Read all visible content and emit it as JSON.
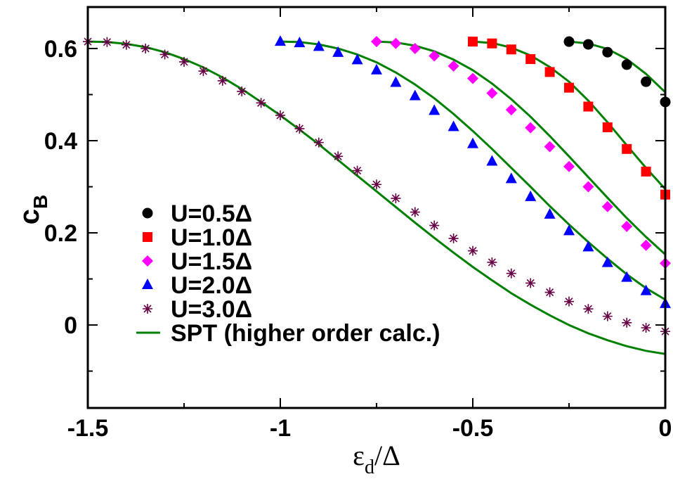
{
  "chart_data": {
    "type": "scatter",
    "xlabel": "ε_d/Δ",
    "xlabel_main": "ε",
    "xlabel_sub": "d",
    "xlabel_tail": "/Δ",
    "ylabel": "c_B",
    "ylabel_main": "c",
    "ylabel_sub": "B",
    "xlim": [
      -1.5,
      0
    ],
    "ylim": [
      -0.18,
      0.69
    ],
    "grid": false,
    "legend_position": "lower-left",
    "x_ticks": [
      {
        "value": -1.5,
        "label": "-1.5"
      },
      {
        "value": -1,
        "label": "-1"
      },
      {
        "value": -0.5,
        "label": "-0.5"
      },
      {
        "value": 0,
        "label": "0"
      }
    ],
    "y_ticks": [
      {
        "value": 0,
        "label": "0"
      },
      {
        "value": 0.2,
        "label": "0.2"
      },
      {
        "value": 0.4,
        "label": "0.4"
      },
      {
        "value": 0.6,
        "label": "0.6"
      }
    ],
    "series": [
      {
        "name": "U=0.5Δ",
        "marker": "circle",
        "color": "#000000",
        "points": [
          [
            -0.25,
            0.615
          ],
          [
            -0.2,
            0.609
          ],
          [
            -0.15,
            0.592
          ],
          [
            -0.1,
            0.565
          ],
          [
            -0.05,
            0.528
          ],
          [
            0,
            0.484
          ]
        ]
      },
      {
        "name": "U=1.0Δ",
        "marker": "square",
        "color": "#ff0000",
        "points": [
          [
            -0.5,
            0.615
          ],
          [
            -0.45,
            0.611
          ],
          [
            -0.4,
            0.598
          ],
          [
            -0.35,
            0.577
          ],
          [
            -0.3,
            0.549
          ],
          [
            -0.25,
            0.515
          ],
          [
            -0.2,
            0.474
          ],
          [
            -0.15,
            0.429
          ],
          [
            -0.1,
            0.382
          ],
          [
            -0.05,
            0.333
          ],
          [
            0,
            0.283
          ]
        ]
      },
      {
        "name": "U=1.5Δ",
        "marker": "diamond",
        "color": "#ff00ff",
        "points": [
          [
            -0.75,
            0.615
          ],
          [
            -0.7,
            0.611
          ],
          [
            -0.65,
            0.6
          ],
          [
            -0.6,
            0.584
          ],
          [
            -0.55,
            0.562
          ],
          [
            -0.5,
            0.535
          ],
          [
            -0.45,
            0.503
          ],
          [
            -0.4,
            0.467
          ],
          [
            -0.35,
            0.428
          ],
          [
            -0.3,
            0.387
          ],
          [
            -0.25,
            0.344
          ],
          [
            -0.2,
            0.3
          ],
          [
            -0.15,
            0.257
          ],
          [
            -0.1,
            0.214
          ],
          [
            -0.05,
            0.173
          ],
          [
            0,
            0.134
          ]
        ]
      },
      {
        "name": "U=2.0Δ",
        "marker": "triangle",
        "color": "#0000ff",
        "points": [
          [
            -1,
            0.615
          ],
          [
            -0.95,
            0.612
          ],
          [
            -0.9,
            0.604
          ],
          [
            -0.85,
            0.591
          ],
          [
            -0.8,
            0.575
          ],
          [
            -0.75,
            0.553
          ],
          [
            -0.7,
            0.526
          ],
          [
            -0.65,
            0.497
          ],
          [
            -0.6,
            0.465
          ],
          [
            -0.55,
            0.43
          ],
          [
            -0.5,
            0.393
          ],
          [
            -0.45,
            0.355
          ],
          [
            -0.4,
            0.317
          ],
          [
            -0.35,
            0.278
          ],
          [
            -0.3,
            0.24
          ],
          [
            -0.25,
            0.204
          ],
          [
            -0.2,
            0.169
          ],
          [
            -0.15,
            0.135
          ],
          [
            -0.1,
            0.103
          ],
          [
            -0.05,
            0.074
          ],
          [
            0,
            0.046
          ]
        ]
      },
      {
        "name": "U=3.0Δ",
        "marker": "star",
        "color": "#660044",
        "points": [
          [
            -1.5,
            0.615
          ],
          [
            -1.45,
            0.614
          ],
          [
            -1.4,
            0.608
          ],
          [
            -1.35,
            0.6
          ],
          [
            -1.3,
            0.587
          ],
          [
            -1.25,
            0.571
          ],
          [
            -1.2,
            0.551
          ],
          [
            -1.15,
            0.53
          ],
          [
            -1.1,
            0.507
          ],
          [
            -1.05,
            0.482
          ],
          [
            -1,
            0.455
          ],
          [
            -0.95,
            0.426
          ],
          [
            -0.9,
            0.396
          ],
          [
            -0.85,
            0.366
          ],
          [
            -0.8,
            0.335
          ],
          [
            -0.75,
            0.305
          ],
          [
            -0.7,
            0.275
          ],
          [
            -0.65,
            0.245
          ],
          [
            -0.6,
            0.216
          ],
          [
            -0.55,
            0.188
          ],
          [
            -0.5,
            0.161
          ],
          [
            -0.45,
            0.136
          ],
          [
            -0.4,
            0.112
          ],
          [
            -0.35,
            0.091
          ],
          [
            -0.3,
            0.071
          ],
          [
            -0.25,
            0.051
          ],
          [
            -0.2,
            0.035
          ],
          [
            -0.15,
            0.019
          ],
          [
            -0.1,
            0.005
          ],
          [
            -0.05,
            -0.006
          ],
          [
            0,
            -0.014
          ]
        ]
      }
    ],
    "lines": [
      {
        "name": "SPT (higher order calc.)",
        "color": "#008000",
        "curves": [
          [
            [
              -0.25,
              0.615
            ],
            [
              -0.2,
              0.611
            ],
            [
              -0.15,
              0.599
            ],
            [
              -0.1,
              0.577
            ],
            [
              -0.05,
              0.545
            ],
            [
              0,
              0.505
            ]
          ],
          [
            [
              -0.5,
              0.615
            ],
            [
              -0.45,
              0.612
            ],
            [
              -0.4,
              0.602
            ],
            [
              -0.35,
              0.585
            ],
            [
              -0.3,
              0.56
            ],
            [
              -0.25,
              0.528
            ],
            [
              -0.2,
              0.487
            ],
            [
              -0.15,
              0.44
            ],
            [
              -0.1,
              0.39
            ],
            [
              -0.05,
              0.341
            ],
            [
              0,
              0.295
            ]
          ],
          [
            [
              -0.75,
              0.615
            ],
            [
              -0.7,
              0.613
            ],
            [
              -0.65,
              0.606
            ],
            [
              -0.6,
              0.594
            ],
            [
              -0.55,
              0.576
            ],
            [
              -0.5,
              0.553
            ],
            [
              -0.45,
              0.524
            ],
            [
              -0.4,
              0.49
            ],
            [
              -0.35,
              0.452
            ],
            [
              -0.3,
              0.41
            ],
            [
              -0.25,
              0.366
            ],
            [
              -0.2,
              0.321
            ],
            [
              -0.15,
              0.276
            ],
            [
              -0.1,
              0.232
            ],
            [
              -0.05,
              0.191
            ],
            [
              0,
              0.153
            ]
          ],
          [
            [
              -1,
              0.615
            ],
            [
              -0.95,
              0.614
            ],
            [
              -0.9,
              0.609
            ],
            [
              -0.85,
              0.6
            ],
            [
              -0.8,
              0.587
            ],
            [
              -0.75,
              0.57
            ],
            [
              -0.7,
              0.548
            ],
            [
              -0.65,
              0.522
            ],
            [
              -0.6,
              0.492
            ],
            [
              -0.55,
              0.458
            ],
            [
              -0.5,
              0.421
            ],
            [
              -0.45,
              0.382
            ],
            [
              -0.4,
              0.341
            ],
            [
              -0.35,
              0.3
            ],
            [
              -0.3,
              0.258
            ],
            [
              -0.25,
              0.218
            ],
            [
              -0.2,
              0.18
            ],
            [
              -0.15,
              0.144
            ],
            [
              -0.1,
              0.11
            ],
            [
              -0.05,
              0.08
            ],
            [
              0,
              0.055
            ]
          ],
          [
            [
              -1.5,
              0.615
            ],
            [
              -1.45,
              0.614
            ],
            [
              -1.4,
              0.61
            ],
            [
              -1.35,
              0.603
            ],
            [
              -1.3,
              0.592
            ],
            [
              -1.25,
              0.577
            ],
            [
              -1.2,
              0.559
            ],
            [
              -1.15,
              0.537
            ],
            [
              -1.1,
              0.512
            ],
            [
              -1.05,
              0.484
            ],
            [
              -1,
              0.455
            ],
            [
              -0.95,
              0.424
            ],
            [
              -0.9,
              0.392
            ],
            [
              -0.85,
              0.358
            ],
            [
              -0.8,
              0.324
            ],
            [
              -0.75,
              0.29
            ],
            [
              -0.7,
              0.256
            ],
            [
              -0.65,
              0.222
            ],
            [
              -0.6,
              0.189
            ],
            [
              -0.55,
              0.157
            ],
            [
              -0.5,
              0.126
            ],
            [
              -0.45,
              0.097
            ],
            [
              -0.4,
              0.069
            ],
            [
              -0.35,
              0.044
            ],
            [
              -0.3,
              0.021
            ],
            [
              -0.25,
              0.0
            ],
            [
              -0.2,
              -0.018
            ],
            [
              -0.15,
              -0.033
            ],
            [
              -0.1,
              -0.046
            ],
            [
              -0.05,
              -0.056
            ],
            [
              0,
              -0.063
            ]
          ]
        ]
      }
    ]
  }
}
